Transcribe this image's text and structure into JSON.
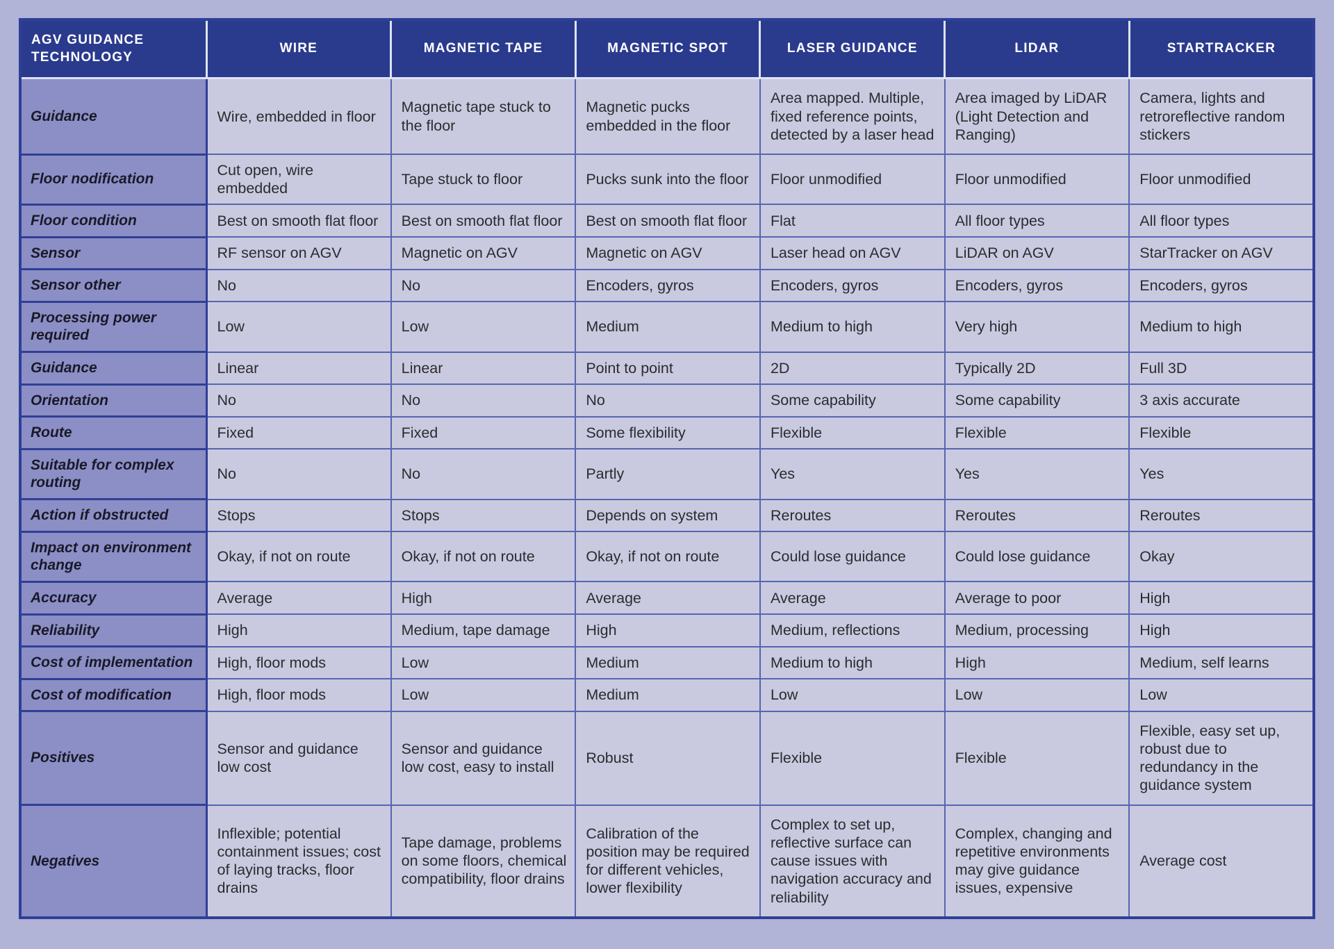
{
  "colors": {
    "page_background": "#b1b3d7",
    "header_background": "#2a3b8e",
    "header_text": "#ffffff",
    "row_label_background": "#8c8fc5",
    "cell_background": "#c9cadf",
    "dark_border": "#2f3f97",
    "light_border": "#5665b2"
  },
  "table": {
    "header": [
      "AGV GUIDANCE TECHNOLOGY",
      "WIRE",
      "MAGNETIC TAPE",
      "MAGNETIC SPOT",
      "LASER GUIDANCE",
      "LIDAR",
      "STARTRACKER"
    ],
    "rows": [
      {
        "label": "Guidance",
        "cells": [
          "Wire, embedded in floor",
          "Magnetic tape stuck to the floor",
          "Magnetic pucks embedded in the floor",
          "Area mapped. Multiple, fixed reference points, detected by a laser head",
          "Area imaged by LiDAR (Light Detection and Ranging)",
          "Camera, lights and retroreflective random stickers"
        ]
      },
      {
        "label": "Floor nodification",
        "cells": [
          "Cut open, wire embedded",
          "Tape stuck to floor",
          "Pucks sunk into the floor",
          "Floor unmodified",
          "Floor unmodified",
          "Floor unmodified"
        ]
      },
      {
        "label": "Floor condition",
        "cells": [
          "Best on smooth flat floor",
          "Best on smooth flat floor",
          "Best on smooth flat floor",
          "Flat",
          "All floor types",
          "All floor types"
        ]
      },
      {
        "label": "Sensor",
        "cells": [
          "RF sensor on AGV",
          "Magnetic on AGV",
          "Magnetic on AGV",
          "Laser head on AGV",
          "LiDAR on AGV",
          "StarTracker on AGV"
        ]
      },
      {
        "label": "Sensor other",
        "cells": [
          "No",
          "No",
          "Encoders, gyros",
          "Encoders, gyros",
          "Encoders, gyros",
          "Encoders, gyros"
        ]
      },
      {
        "label": "Processing power required",
        "cells": [
          "Low",
          "Low",
          "Medium",
          "Medium to high",
          "Very high",
          "Medium to high"
        ]
      },
      {
        "label": "Guidance",
        "cells": [
          "Linear",
          "Linear",
          "Point to point",
          "2D",
          "Typically 2D",
          "Full 3D"
        ]
      },
      {
        "label": "Orientation",
        "cells": [
          "No",
          "No",
          "No",
          "Some capability",
          "Some capability",
          "3 axis accurate"
        ]
      },
      {
        "label": "Route",
        "cells": [
          "Fixed",
          "Fixed",
          "Some flexibility",
          "Flexible",
          "Flexible",
          "Flexible"
        ]
      },
      {
        "label": "Suitable for complex routing",
        "cells": [
          "No",
          "No",
          "Partly",
          "Yes",
          "Yes",
          "Yes"
        ]
      },
      {
        "label": "Action if obstructed",
        "cells": [
          "Stops",
          "Stops",
          "Depends on system",
          "Reroutes",
          "Reroutes",
          "Reroutes"
        ]
      },
      {
        "label": "Impact on environment change",
        "cells": [
          "Okay, if not on route",
          "Okay, if not on route",
          "Okay, if not on route",
          "Could lose guidance",
          "Could lose guidance",
          "Okay"
        ]
      },
      {
        "label": "Accuracy",
        "cells": [
          "Average",
          "High",
          "Average",
          "Average",
          "Average to poor",
          "High"
        ]
      },
      {
        "label": "Reliability",
        "cells": [
          "High",
          "Medium, tape damage",
          "High",
          "Medium, reflections",
          "Medium, processing",
          "High"
        ]
      },
      {
        "label": "Cost of implementation",
        "cells": [
          "High, floor mods",
          "Low",
          "Medium",
          "Medium to high",
          "High",
          "Medium, self learns"
        ]
      },
      {
        "label": "Cost of modification",
        "cells": [
          "High, floor mods",
          "Low",
          "Medium",
          "Low",
          "Low",
          "Low"
        ]
      },
      {
        "label": "Positives",
        "cells": [
          "Sensor and guidance low cost",
          "Sensor and guidance low cost, easy to install",
          "Robust",
          "Flexible",
          "Flexible",
          "Flexible, easy set up, robust due to redundancy in the guidance system"
        ]
      },
      {
        "label": "Negatives",
        "cells": [
          "Inflexible; potential containment issues; cost of laying tracks, floor drains",
          "Tape damage, problems on some floors, chemical compatibility, floor drains",
          "Calibration of the position may be required for different vehicles, lower flexibility",
          "Complex to set up, reflective surface can cause issues with navigation accuracy and reliability",
          "Complex, changing and repetitive environments may give guidance issues, expensive",
          "Average cost"
        ]
      }
    ]
  }
}
